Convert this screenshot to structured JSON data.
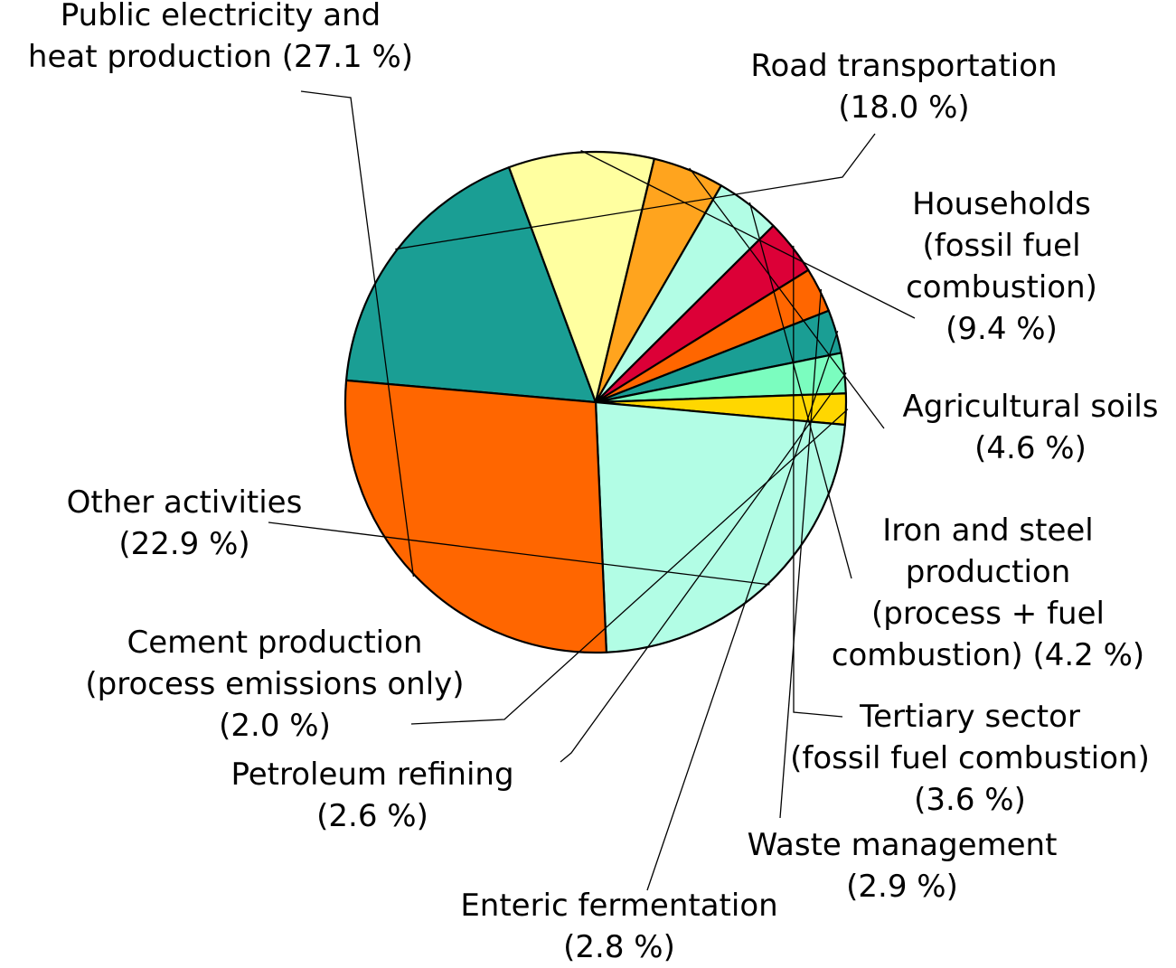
{
  "chart_data": {
    "type": "pie",
    "unit": "%",
    "slices": [
      {
        "name": "Road transportation",
        "value": 18.0,
        "color": "#1a9e94",
        "label_lines": [
          "Road transportation",
          "(18.0 %)"
        ]
      },
      {
        "name": "Households (fossil fuel combustion)",
        "value": 9.4,
        "color": "#ffffa0",
        "label_lines": [
          "Households",
          "(fossil fuel",
          "combustion)",
          "(9.4 %)"
        ]
      },
      {
        "name": "Agricultural soils",
        "value": 4.6,
        "color": "#ffa41e",
        "label_lines": [
          "Agricultural soils",
          "(4.6 %)"
        ]
      },
      {
        "name": "Iron and steel production (process + fuel combustion)",
        "value": 4.2,
        "color": "#b2fde5",
        "label_lines": [
          "Iron and steel",
          "production",
          "(process + fuel",
          "combustion) (4.2 %)"
        ]
      },
      {
        "name": "Tertiary sector (fossil fuel combustion)",
        "value": 3.6,
        "color": "#dc0037",
        "label_lines": [
          "Tertiary sector",
          "(fossil fuel combustion)",
          "(3.6 %)"
        ]
      },
      {
        "name": "Waste management",
        "value": 2.9,
        "color": "#ff6600",
        "label_lines": [
          "Waste management",
          "(2.9 %)"
        ]
      },
      {
        "name": "Enteric fermentation",
        "value": 2.8,
        "color": "#1a9e94",
        "label_lines": [
          "Enteric fermentation",
          "(2.8 %)"
        ]
      },
      {
        "name": "Petroleum refining",
        "value": 2.6,
        "color": "#7bfdbf",
        "label_lines": [
          "Petroleum refining",
          "(2.6 %)"
        ]
      },
      {
        "name": "Cement production (process emissions only)",
        "value": 2.0,
        "color": "#ffd700",
        "label_lines": [
          "Cement production",
          "(process emissions only)",
          "(2.0 %)"
        ]
      },
      {
        "name": "Other activities",
        "value": 22.9,
        "color": "#b2fde5",
        "label_lines": [
          "Other activities",
          "(22.9 %)"
        ]
      },
      {
        "name": "Public electricity and heat production",
        "value": 27.1,
        "color": "#ff6600",
        "label_lines": [
          "Public electricity and",
          "heat production (27.1 %)"
        ]
      }
    ]
  }
}
